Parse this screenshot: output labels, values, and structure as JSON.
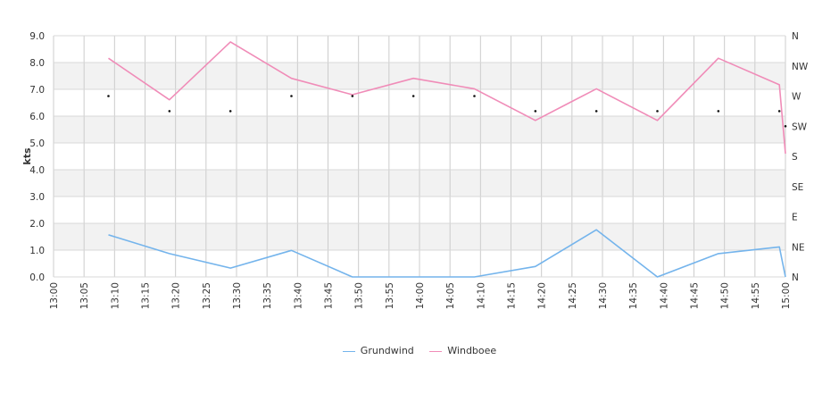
{
  "chart_data": {
    "type": "line",
    "title": "",
    "xlabel": "",
    "ylabel": "kts",
    "x_ticks": [
      "13:00",
      "13:05",
      "13:10",
      "13:15",
      "13:20",
      "13:25",
      "13:30",
      "13:35",
      "13:40",
      "13:45",
      "13:50",
      "13:55",
      "14:00",
      "14:05",
      "14:10",
      "14:15",
      "14:20",
      "14:25",
      "14:30",
      "14:35",
      "14:40",
      "14:45",
      "14:50",
      "14:55",
      "15:00"
    ],
    "y_ticks": [
      "0.0",
      "1.0",
      "2.0",
      "3.0",
      "4.0",
      "5.0",
      "6.0",
      "7.0",
      "8.0",
      "9.0"
    ],
    "ylim": [
      0,
      9
    ],
    "xlim_minutes": [
      0,
      120
    ],
    "direction_ticks": [
      "N",
      "NE",
      "E",
      "SE",
      "S",
      "SW",
      "W",
      "NW",
      "N"
    ],
    "direction_lim": [
      0,
      360
    ],
    "grid": true,
    "legend_position": "bottom",
    "series": [
      {
        "name": "Grundwind",
        "color": "#74b4ec",
        "x": [
          "13:09",
          "13:19",
          "13:29",
          "13:39",
          "13:49",
          "13:59",
          "14:09",
          "14:19",
          "14:29",
          "14:39",
          "14:49",
          "14:59",
          "15:00"
        ],
        "values": [
          1.57,
          0.87,
          0.33,
          0.99,
          0.0,
          0.0,
          0.0,
          0.39,
          1.76,
          0.0,
          0.87,
          1.12,
          0.0
        ]
      },
      {
        "name": "Windboee",
        "color": "#f08cb8",
        "x": [
          "13:09",
          "13:19",
          "13:29",
          "13:39",
          "13:49",
          "13:59",
          "14:09",
          "14:19",
          "14:29",
          "14:39",
          "14:49",
          "14:59",
          "15:00"
        ],
        "values": [
          8.16,
          6.61,
          8.77,
          7.41,
          6.8,
          7.41,
          7.02,
          5.84,
          7.02,
          5.84,
          8.16,
          7.17,
          4.6
        ]
      }
    ],
    "direction_points": {
      "x": [
        "13:09",
        "13:19",
        "13:29",
        "13:39",
        "13:49",
        "13:59",
        "14:09",
        "14:19",
        "14:29",
        "14:39",
        "14:49",
        "14:59",
        "15:00"
      ],
      "degrees": [
        270,
        247.5,
        247.5,
        270,
        270,
        270,
        270,
        247.5,
        247.5,
        247.5,
        247.5,
        247.5,
        225
      ]
    }
  }
}
